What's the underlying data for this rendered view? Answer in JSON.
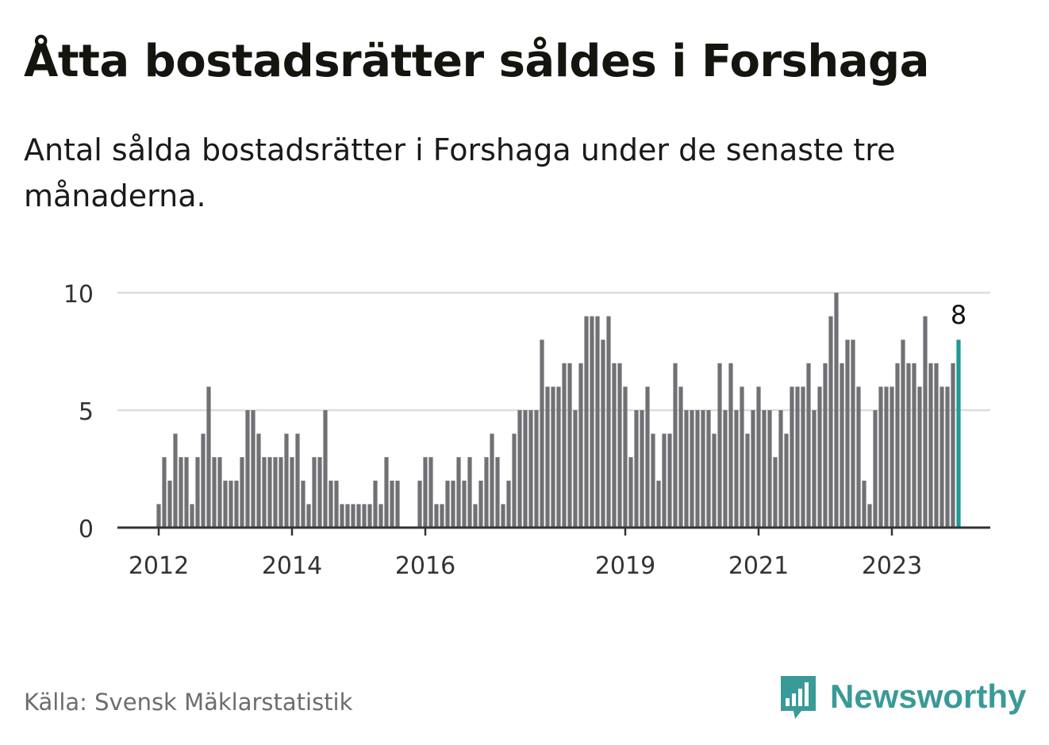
{
  "header": {
    "title": "Åtta bostadsrätter såldes i Forshaga",
    "subtitle": "Antal sålda bostadsrätter i Forshaga under de senaste tre månaderna."
  },
  "footer": {
    "source": "Källa: Svensk Mäklarstatistik",
    "brand": "Newsworthy",
    "brand_icon": "bar-chart-speech-bubble-icon"
  },
  "colors": {
    "bar": "#717075",
    "highlight": "#1e9a95",
    "grid": "#dddddd",
    "baseline": "#333333",
    "brand": "#3a9a98"
  },
  "chart_data": {
    "type": "bar",
    "title": "Åtta bostadsrätter såldes i Forshaga",
    "subtitle": "Antal sålda bostadsrätter i Forshaga under de senaste tre månaderna.",
    "xlabel": "",
    "ylabel": "",
    "ylim": [
      0,
      10
    ],
    "yticks": [
      0,
      5,
      10
    ],
    "grid": true,
    "legend": "none",
    "x_start": "2011-12",
    "x_step": "1 month",
    "xtick_labels": [
      {
        "label": "2012",
        "index": 0
      },
      {
        "label": "2014",
        "index": 24
      },
      {
        "label": "2016",
        "index": 48
      },
      {
        "label": "2019",
        "index": 84
      },
      {
        "label": "2021",
        "index": 108
      },
      {
        "label": "2023",
        "index": 132
      }
    ],
    "values": [
      1,
      3,
      2,
      4,
      3,
      3,
      1,
      3,
      4,
      6,
      3,
      3,
      2,
      2,
      2,
      3,
      5,
      5,
      4,
      3,
      3,
      3,
      3,
      4,
      3,
      4,
      2,
      1,
      3,
      3,
      5,
      2,
      2,
      1,
      1,
      1,
      1,
      1,
      1,
      2,
      1,
      3,
      2,
      2,
      0,
      0,
      0,
      2,
      3,
      3,
      1,
      1,
      2,
      2,
      3,
      2,
      3,
      1,
      2,
      3,
      4,
      3,
      1,
      2,
      4,
      5,
      5,
      5,
      5,
      8,
      6,
      6,
      6,
      7,
      7,
      5,
      7,
      9,
      9,
      9,
      8,
      9,
      7,
      7,
      6,
      3,
      5,
      5,
      6,
      4,
      2,
      4,
      4,
      7,
      6,
      5,
      5,
      5,
      5,
      5,
      4,
      7,
      5,
      7,
      5,
      6,
      4,
      5,
      6,
      5,
      5,
      3,
      5,
      4,
      6,
      6,
      6,
      7,
      5,
      6,
      7,
      9,
      10,
      7,
      8,
      8,
      6,
      2,
      1,
      5,
      6,
      6,
      6,
      7,
      8,
      7,
      7,
      6,
      9,
      7,
      7,
      6,
      6,
      7,
      8
    ],
    "highlight_index": 144,
    "highlight_label": "8"
  }
}
